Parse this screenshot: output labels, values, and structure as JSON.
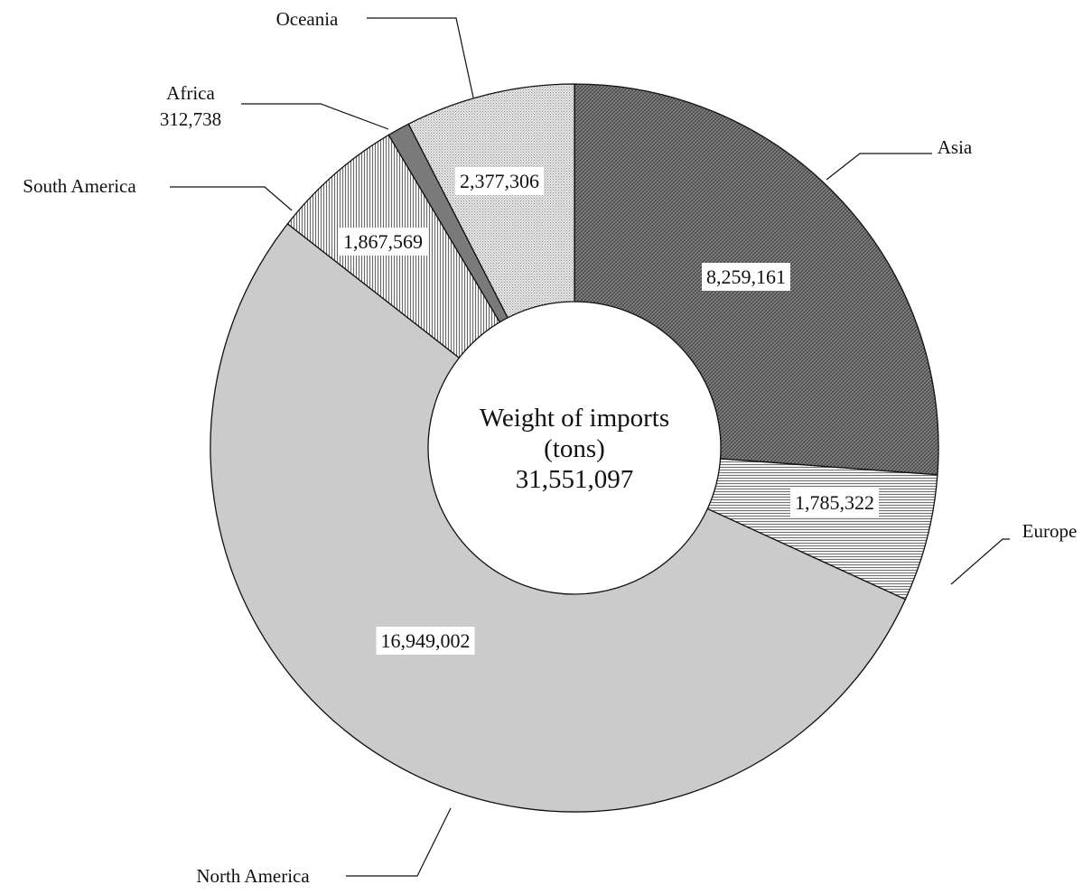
{
  "chart_data": {
    "type": "pie",
    "center_text": [
      "Weight of imports",
      "(tons)",
      "31,551,097"
    ],
    "total": 31551097,
    "slices": [
      {
        "name": "Asia",
        "value": 8259161,
        "label": "8,259,161",
        "pattern": "crosshatch-dark"
      },
      {
        "name": "Europe",
        "value": 1785322,
        "label": "1,785,322",
        "pattern": "horizontal-lines"
      },
      {
        "name": "North America",
        "value": 16949002,
        "label": "16,949,002",
        "pattern": "solid-light-gray"
      },
      {
        "name": "South America",
        "value": 1867569,
        "label": "1,867,569",
        "pattern": "vertical-lines"
      },
      {
        "name": "Africa",
        "value": 312738,
        "label": "312,738",
        "pattern": "solid-dark-gray"
      },
      {
        "name": "Oceania",
        "value": 2377306,
        "label": "2,377,306",
        "pattern": "fine-dots"
      }
    ]
  }
}
